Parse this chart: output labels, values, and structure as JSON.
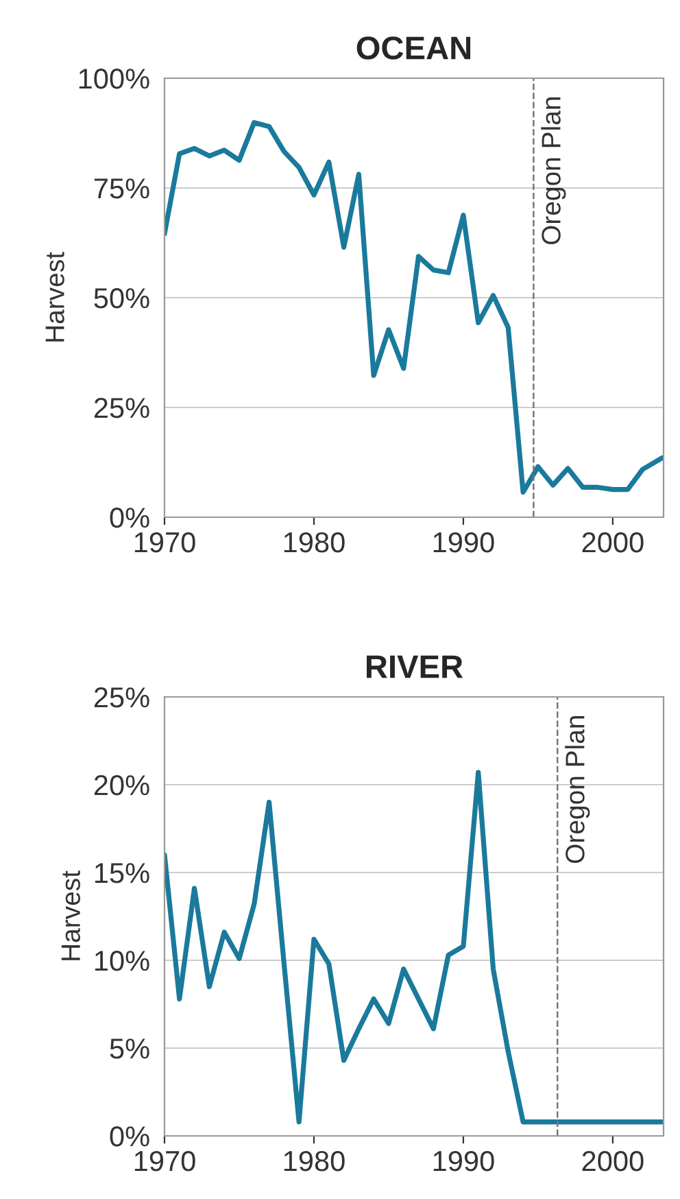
{
  "chart_data": [
    {
      "type": "line",
      "title": "OCEAN",
      "ylabel": "Harvest",
      "x": [
        1970,
        1971,
        1972,
        1973,
        1974,
        1975,
        1976,
        1977,
        1978,
        1979,
        1980,
        1981,
        1982,
        1983,
        1984,
        1985,
        1986,
        1987,
        1988,
        1989,
        1990,
        1991,
        1992,
        1993,
        1994,
        1995,
        1996,
        1997,
        1998,
        1999,
        2000,
        2001,
        2002,
        2003.3
      ],
      "series": [
        {
          "color": "#1a7a9c",
          "values": [
            64.6,
            82.8,
            84,
            82.3,
            83.6,
            81.3,
            89.9,
            89,
            83.3,
            79.7,
            73.4,
            80.9,
            61.5,
            78.1,
            32.3,
            42.7,
            33.9,
            59.4,
            56.3,
            55.7,
            68.8,
            44.3,
            50.5,
            43.2,
            5.7,
            11.5,
            7.3,
            11.1,
            6.8,
            6.8,
            6.3,
            6.3,
            10.9,
            13.5
          ]
        }
      ],
      "xlim": [
        1970,
        2003.4
      ],
      "xticks": [
        1970,
        1980,
        1990,
        2000
      ],
      "ylim": [
        0,
        100
      ],
      "yticks": [
        {
          "value": 0,
          "label": "0%"
        },
        {
          "value": 25,
          "label": "25%"
        },
        {
          "value": 50,
          "label": "50%"
        },
        {
          "value": 75,
          "label": "75%"
        },
        {
          "value": 100,
          "label": "100%"
        }
      ],
      "grid": "y",
      "marker": "none",
      "line_style": "solid",
      "ref_lines": [
        {
          "axis": "x",
          "value": 1994.7,
          "label": "Oregon Plan",
          "color": "#777777",
          "line_style": "dashed"
        }
      ]
    },
    {
      "type": "line",
      "title": "RIVER",
      "ylabel": "Harvest",
      "x": [
        1970,
        1971,
        1972,
        1973,
        1974,
        1975,
        1976,
        1977,
        1978,
        1979,
        1980,
        1981,
        1982,
        1983,
        1984,
        1985,
        1986,
        1987,
        1988,
        1989,
        1990,
        1991,
        1992,
        1993,
        1994,
        2003.3
      ],
      "series": [
        {
          "color": "#1a7a9c",
          "values": [
            16.0,
            7.8,
            14.1,
            8.5,
            11.6,
            10.1,
            13.2,
            19.0,
            9.8,
            0.8,
            11.2,
            9.8,
            4.3,
            6.1,
            7.8,
            6.4,
            9.5,
            7.8,
            6.1,
            10.3,
            10.8,
            20.7,
            9.5,
            4.8,
            0.8,
            0.8
          ]
        }
      ],
      "xlim": [
        1970,
        2003.4
      ],
      "xticks": [
        1970,
        1980,
        1990,
        2000
      ],
      "ylim": [
        0,
        25
      ],
      "yticks": [
        {
          "value": 0,
          "label": "0%"
        },
        {
          "value": 5,
          "label": "5%"
        },
        {
          "value": 10,
          "label": "10%"
        },
        {
          "value": 15,
          "label": "15%"
        },
        {
          "value": 20,
          "label": "20%"
        },
        {
          "value": 25,
          "label": "25%"
        }
      ],
      "grid": "y",
      "marker": "none",
      "line_style": "solid",
      "ref_lines": [
        {
          "axis": "x",
          "value": 1996.3,
          "label": "Oregon Plan",
          "color": "#777777",
          "line_style": "dashed"
        }
      ]
    }
  ]
}
